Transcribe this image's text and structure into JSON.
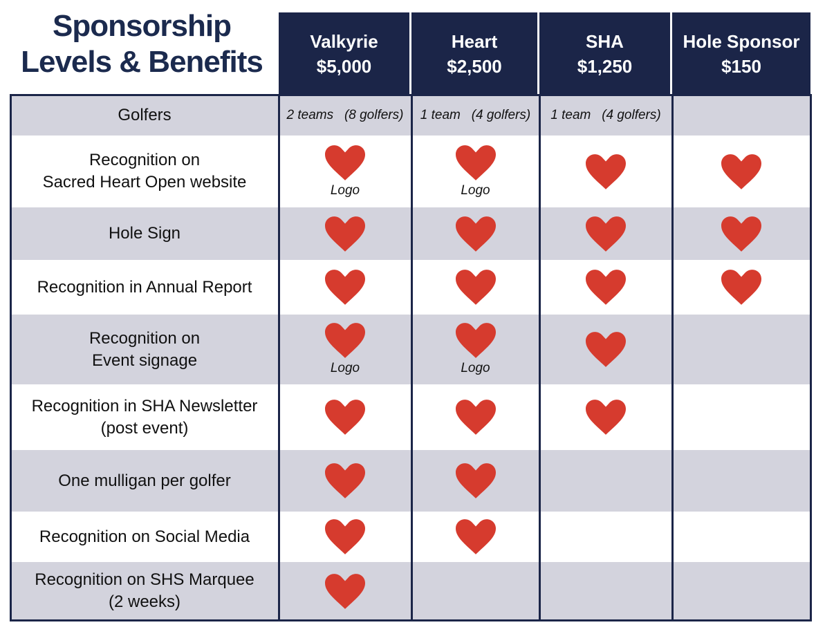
{
  "title": [
    "Sponsorship",
    "Levels & Benefits"
  ],
  "levels": [
    {
      "name": "Valkyrie",
      "price": "$5,000"
    },
    {
      "name": "Heart",
      "price": "$2,500"
    },
    {
      "name": "SHA",
      "price": "$1,250"
    },
    {
      "name": "Hole Sponsor",
      "price": "$150"
    }
  ],
  "rows": [
    {
      "label": [
        "Golfers"
      ],
      "cells": [
        {
          "text": "2 teams   (8 golfers)"
        },
        {
          "text": "1 team   (4 golfers)"
        },
        {
          "text": "1 team   (4 golfers)"
        },
        null
      ]
    },
    {
      "label": [
        "Recognition on",
        "Sacred Heart Open website"
      ],
      "cells": [
        {
          "heart": true,
          "note": "Logo"
        },
        {
          "heart": true,
          "note": "Logo"
        },
        {
          "heart": true
        },
        {
          "heart": true
        }
      ]
    },
    {
      "label": [
        "Hole Sign"
      ],
      "cells": [
        {
          "heart": true
        },
        {
          "heart": true
        },
        {
          "heart": true
        },
        {
          "heart": true
        }
      ]
    },
    {
      "label": [
        "Recognition in Annual Report"
      ],
      "cells": [
        {
          "heart": true
        },
        {
          "heart": true
        },
        {
          "heart": true
        },
        {
          "heart": true
        }
      ]
    },
    {
      "label": [
        "Recognition on",
        "Event signage"
      ],
      "cells": [
        {
          "heart": true,
          "note": "Logo"
        },
        {
          "heart": true,
          "note": "Logo"
        },
        {
          "heart": true
        },
        null
      ]
    },
    {
      "label": [
        "Recognition in SHA Newsletter",
        "(post event)"
      ],
      "cells": [
        {
          "heart": true
        },
        {
          "heart": true
        },
        {
          "heart": true
        },
        null
      ]
    },
    {
      "label": [
        "One mulligan per golfer"
      ],
      "cells": [
        {
          "heart": true
        },
        {
          "heart": true
        },
        null,
        null
      ]
    },
    {
      "label": [
        "Recognition on Social Media"
      ],
      "cells": [
        {
          "heart": true
        },
        {
          "heart": true
        },
        null,
        null
      ]
    },
    {
      "label": [
        "Recognition on SHS Marquee",
        "(2 weeks)"
      ],
      "cells": [
        {
          "heart": true
        },
        null,
        null,
        null
      ]
    }
  ]
}
